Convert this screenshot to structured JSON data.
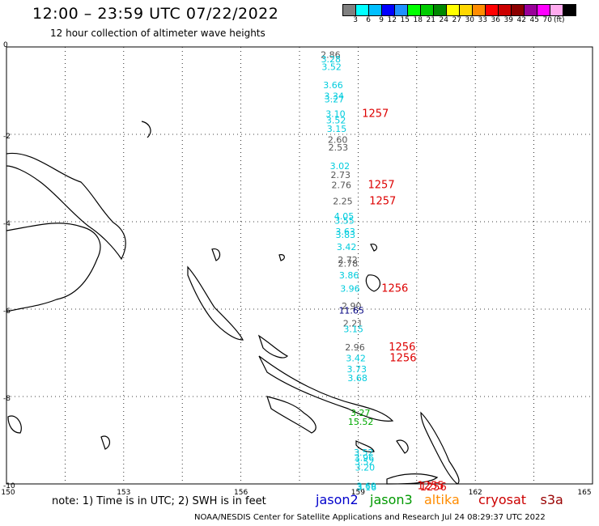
{
  "header": {
    "title": "12:00 – 23:59 UTC 07/22/2022",
    "subtitle": "12 hour collection of altimeter wave heights"
  },
  "legend": {
    "colors": [
      "#808080",
      "#00ffff",
      "#00bfff",
      "#0000ff",
      "#1e90ff",
      "#00ff00",
      "#00cc00",
      "#008800",
      "#ffff00",
      "#ffd700",
      "#ff8c00",
      "#ff0000",
      "#cc0000",
      "#8b0000",
      "#990099",
      "#ff00ff",
      "#ffaaee",
      "#000000"
    ],
    "labels": [
      "3",
      "6",
      "9",
      "12",
      "15",
      "18",
      "21",
      "24",
      "27",
      "30",
      "33",
      "36",
      "39",
      "42",
      "45",
      "70"
    ],
    "unit": "(ft)"
  },
  "axes": {
    "x_ticks": [
      "150",
      "153",
      "156",
      "159",
      "162",
      "165"
    ],
    "y_ticks": [
      "0",
      "-2",
      "-4",
      "-6",
      "-8",
      "-10"
    ]
  },
  "measurements": [
    {
      "v": "2.86",
      "lat": -0.1,
      "c": "gray"
    },
    {
      "v": "3.28",
      "lat": -0.2,
      "c": "cyan"
    },
    {
      "v": "3.52",
      "lat": -0.38,
      "c": "cyan"
    },
    {
      "v": "3.66",
      "lat": -0.8,
      "c": "cyan"
    },
    {
      "v": "3.34",
      "lat": -1.05,
      "c": "cyan"
    },
    {
      "v": "3.27",
      "lat": -1.12,
      "c": "cyan"
    },
    {
      "v": "3.10",
      "lat": -1.45,
      "c": "cyan"
    },
    {
      "v": "3.52",
      "lat": -1.6,
      "c": "cyan"
    },
    {
      "v": "3.15",
      "lat": -1.8,
      "c": "cyan"
    },
    {
      "v": "2.60",
      "lat": -2.05,
      "c": "gray"
    },
    {
      "v": "2.53",
      "lat": -2.22,
      "c": "gray"
    },
    {
      "v": "3.02",
      "lat": -2.65,
      "c": "cyan"
    },
    {
      "v": "2.73",
      "lat": -2.85,
      "c": "gray"
    },
    {
      "v": "2.76",
      "lat": -3.08,
      "c": "gray"
    },
    {
      "v": "2.25",
      "lat": -3.45,
      "c": "gray"
    },
    {
      "v": "4.05",
      "lat": -3.8,
      "c": "cyan"
    },
    {
      "v": "3.55",
      "lat": -3.9,
      "c": "cyan"
    },
    {
      "v": "3.63",
      "lat": -4.15,
      "c": "cyan"
    },
    {
      "v": "3.83",
      "lat": -4.22,
      "c": "cyan"
    },
    {
      "v": "3.42",
      "lat": -4.5,
      "c": "cyan"
    },
    {
      "v": "2.72",
      "lat": -4.8,
      "c": "gray"
    },
    {
      "v": "2.78",
      "lat": -4.88,
      "c": "gray"
    },
    {
      "v": "3.86",
      "lat": -5.15,
      "c": "cyan"
    },
    {
      "v": "3.96",
      "lat": -5.45,
      "c": "cyan"
    },
    {
      "v": "2.90",
      "lat": -5.85,
      "c": "gray"
    },
    {
      "v": "11.65",
      "lat": -5.95,
      "c": "navy"
    },
    {
      "v": "2.21",
      "lat": -6.25,
      "c": "gray"
    },
    {
      "v": "3.15",
      "lat": -6.38,
      "c": "cyan"
    },
    {
      "v": "2.96",
      "lat": -6.8,
      "c": "gray"
    },
    {
      "v": "3.42",
      "lat": -7.05,
      "c": "cyan"
    },
    {
      "v": "3.73",
      "lat": -7.3,
      "c": "cyan"
    },
    {
      "v": "3.68",
      "lat": -7.5,
      "c": "cyan"
    },
    {
      "v": "3.27",
      "lat": -8.3,
      "c": "green"
    },
    {
      "v": "15.52",
      "lat": -8.5,
      "c": "green"
    },
    {
      "v": "3.52",
      "lat": -9.2,
      "c": "cyan"
    },
    {
      "v": "3.96",
      "lat": -9.32,
      "c": "cyan"
    },
    {
      "v": "3.52",
      "lat": -9.42,
      "c": "cyan"
    },
    {
      "v": "3.20",
      "lat": -9.55,
      "c": "cyan"
    },
    {
      "v": "3.69",
      "lat": -9.97,
      "c": "cyan"
    },
    {
      "v": "3.16",
      "lat": -10.0,
      "c": "cyan"
    }
  ],
  "time_labels": [
    {
      "t": "1257",
      "lon": 159.0,
      "lat": -1.45
    },
    {
      "t": "1257",
      "lon": 159.0,
      "lat": -3.08
    },
    {
      "t": "1257",
      "lon": 159.0,
      "lat": -3.45
    },
    {
      "t": "1256",
      "lon": 159.2,
      "lat": -5.45
    },
    {
      "t": "1256",
      "lon": 159.3,
      "lat": -6.8
    },
    {
      "t": "1256",
      "lon": 159.3,
      "lat": -7.05
    },
    {
      "t": "1255",
      "lon": 160.0,
      "lat": -9.97
    },
    {
      "t": "1256",
      "lon": 160.1,
      "lat": -10.0
    }
  ],
  "notes": {
    "text": "note:  1) Time is in UTC; 2) SWH is in feet",
    "satellites": [
      {
        "name": "jason2",
        "color": "#0000cc"
      },
      {
        "name": "jason3",
        "color": "#009900"
      },
      {
        "name": "altika",
        "color": "#ff8c00"
      },
      {
        "name": "cryosat",
        "color": "#cc0000"
      },
      {
        "name": "s3a",
        "color": "#990000"
      }
    ],
    "footer": "NOAA/NESDIS Center for Satellite Applications and Research    Jul 24 08:29:37 UTC 2022"
  }
}
